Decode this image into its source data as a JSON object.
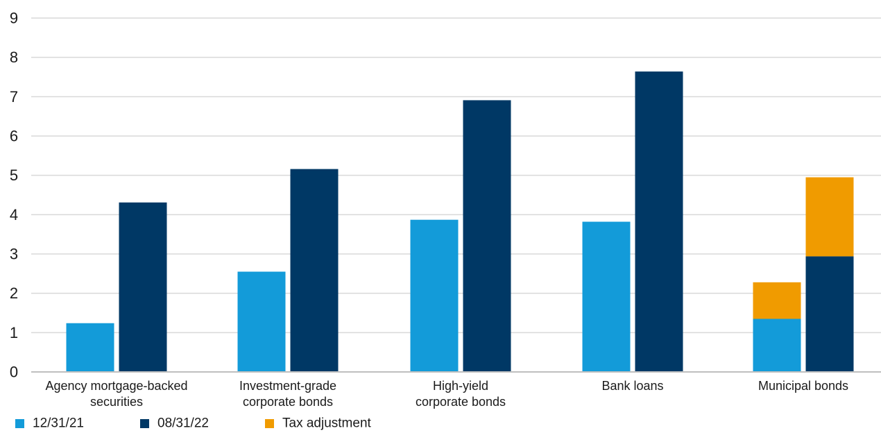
{
  "chart_data": {
    "type": "bar",
    "stacked_series": [
      "Tax adjustment"
    ],
    "categories": [
      [
        "Agency mortgage-backed",
        "securities"
      ],
      [
        "Investment-grade",
        "corporate bonds"
      ],
      [
        "High-yield",
        "corporate bonds"
      ],
      [
        "Bank loans"
      ],
      [
        "Municipal bonds"
      ]
    ],
    "series": [
      {
        "name": "12/31/21",
        "color": "#139BD9",
        "values": [
          1.24,
          2.55,
          3.87,
          3.82,
          1.35
        ]
      },
      {
        "name": "08/31/22",
        "color": "#003865",
        "values": [
          4.31,
          5.16,
          6.91,
          7.64,
          2.94
        ]
      },
      {
        "name": "Tax adjustment",
        "color": "#F09B00",
        "stacked_on": [
          "12/31/21",
          "08/31/22"
        ],
        "values": [
          [
            0,
            0
          ],
          [
            0,
            0
          ],
          [
            0,
            0
          ],
          [
            0,
            0
          ],
          [
            0.93,
            2.01
          ]
        ]
      }
    ],
    "title": "",
    "xlabel": "",
    "ylabel": "",
    "ylim": [
      0,
      9
    ],
    "yticks": [
      "0",
      "1",
      "2",
      "3",
      "4",
      "5",
      "6",
      "7",
      "8",
      "9"
    ],
    "grid": true,
    "legend_position": "bottom-left",
    "legend": [
      "12/31/21",
      "08/31/22",
      "Tax adjustment"
    ]
  }
}
